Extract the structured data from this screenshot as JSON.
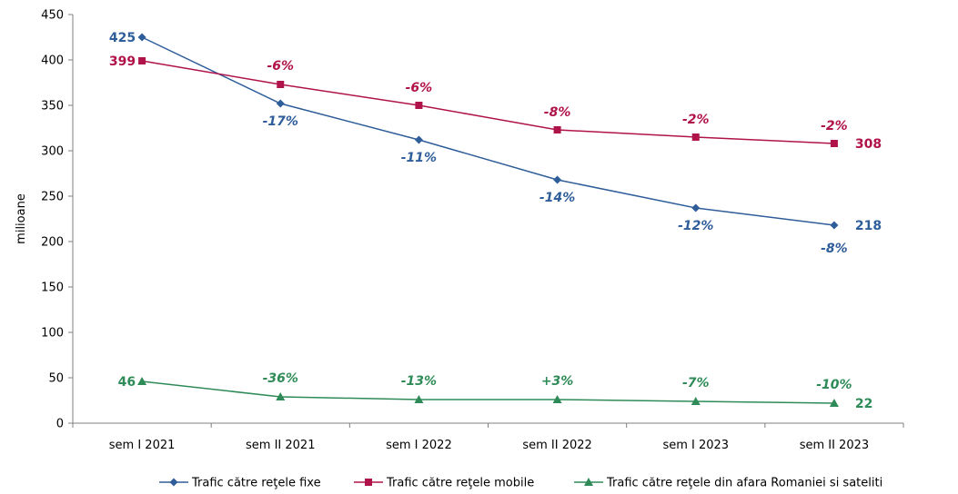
{
  "chart_data": {
    "type": "line",
    "ylabel": "milioane",
    "xlabel": "",
    "ylim": [
      0,
      450
    ],
    "yticks": [
      0,
      50,
      100,
      150,
      200,
      250,
      300,
      350,
      400,
      450
    ],
    "grid": false,
    "legend_position": "bottom",
    "categories": [
      "sem I 2021",
      "sem II 2021",
      "sem I 2022",
      "sem II 2022",
      "sem I 2023",
      "sem II 2023"
    ],
    "series": [
      {
        "name": "Trafic către reţele fixe",
        "color": "#2E5D99",
        "label_color": "#2E5D99",
        "marker": "diamond",
        "values": [
          425,
          352,
          312,
          268,
          237,
          218
        ],
        "start_label": "425",
        "end_label": "218",
        "change_labels": [
          "",
          "-17%",
          "-11%",
          "-14%",
          "-12%",
          "-8%"
        ]
      },
      {
        "name": "Trafic către reţele mobile",
        "color": "#B0134A",
        "label_color": "#B0134A",
        "marker": "square",
        "values": [
          399,
          373,
          350,
          323,
          315,
          308
        ],
        "start_label": "399",
        "end_label": "308",
        "change_labels": [
          "",
          "-6%",
          "-6%",
          "-8%",
          "-2%",
          "-2%"
        ]
      },
      {
        "name": "Trafic către reţele din afara Romaniei si sateliti",
        "color": "#2E8B57",
        "label_color": "#2E8B57",
        "marker": "triangle",
        "values": [
          46,
          29,
          26,
          26,
          24,
          22
        ],
        "start_label": "46",
        "end_label": "22",
        "change_labels": [
          "",
          "-36%",
          "-13%",
          "+3%",
          "-7%",
          "-10%"
        ]
      }
    ]
  }
}
